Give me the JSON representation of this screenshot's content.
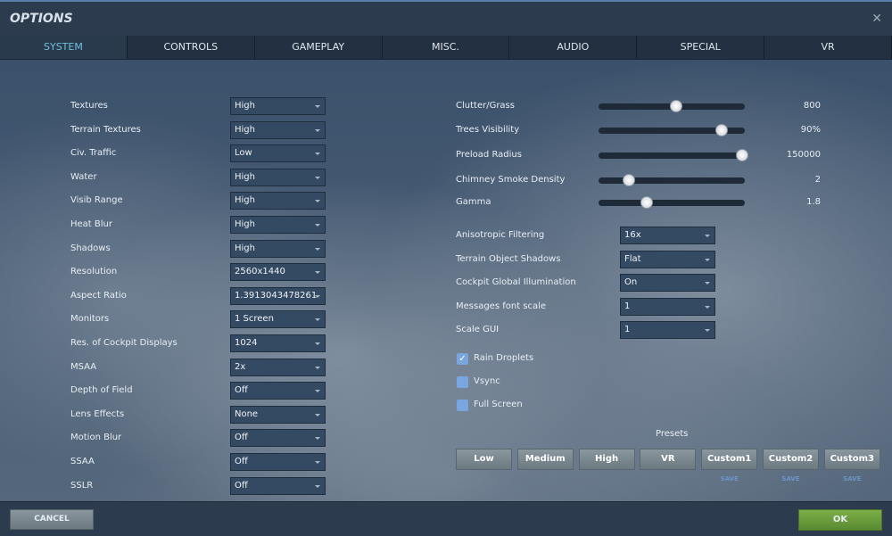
{
  "window": {
    "title": "OPTIONS",
    "close_icon": "close-icon"
  },
  "tabs": [
    {
      "label": "SYSTEM",
      "active": true
    },
    {
      "label": "CONTROLS"
    },
    {
      "label": "GAMEPLAY"
    },
    {
      "label": "MISC."
    },
    {
      "label": "AUDIO"
    },
    {
      "label": "SPECIAL"
    },
    {
      "label": "VR"
    }
  ],
  "left_settings": [
    {
      "label": "Textures",
      "value": "High"
    },
    {
      "label": "Terrain Textures",
      "value": "High"
    },
    {
      "label": "Civ. Traffic",
      "value": "Low"
    },
    {
      "label": "Water",
      "value": "High"
    },
    {
      "label": "Visib Range",
      "value": "High"
    },
    {
      "label": "Heat Blur",
      "value": "High"
    },
    {
      "label": "Shadows",
      "value": "High"
    },
    {
      "label": "Resolution",
      "value": "2560x1440"
    },
    {
      "label": "Aspect Ratio",
      "value": "1.3913043478261"
    },
    {
      "label": "Monitors",
      "value": "1 Screen"
    },
    {
      "label": "Res. of Cockpit Displays",
      "value": "1024"
    },
    {
      "label": "MSAA",
      "value": "2x"
    },
    {
      "label": "Depth of Field",
      "value": "Off"
    },
    {
      "label": "Lens Effects",
      "value": "None"
    },
    {
      "label": "Motion Blur",
      "value": "Off"
    },
    {
      "label": "SSAA",
      "value": "Off"
    },
    {
      "label": "SSLR",
      "value": "Off"
    }
  ],
  "sliders": [
    {
      "label": "Clutter/Grass",
      "value": "800",
      "fraction": 0.53
    },
    {
      "label": "Trees Visibility",
      "value": "90%",
      "fraction": 0.84
    },
    {
      "label": "Preload Radius",
      "value": "150000",
      "fraction": 0.98
    },
    {
      "label": "Chimney Smoke Density",
      "value": "2",
      "fraction": 0.21
    },
    {
      "label": "Gamma",
      "value": "1.8",
      "fraction": 0.33
    }
  ],
  "right_settings": [
    {
      "label": "Anisotropic Filtering",
      "value": "16x"
    },
    {
      "label": "Terrain Object Shadows",
      "value": "Flat"
    },
    {
      "label": "Cockpit Global Illumination",
      "value": "On"
    },
    {
      "label": "Messages font scale",
      "value": "1"
    },
    {
      "label": "Scale GUI",
      "value": "1"
    }
  ],
  "checkboxes": [
    {
      "label": "Rain Droplets",
      "checked": true
    },
    {
      "label": "Vsync",
      "checked": false
    },
    {
      "label": "Full Screen",
      "checked": false
    }
  ],
  "presets": {
    "title": "Presets",
    "buttons": [
      "Low",
      "Medium",
      "High",
      "VR",
      "Custom1",
      "Custom2",
      "Custom3"
    ],
    "save_label": "SAVE"
  },
  "footer": {
    "cancel": "CANCEL",
    "ok": "OK"
  },
  "colors": {
    "accent_tab": "#6fc0dc",
    "ok_green": "#6a9c3c",
    "checkbox": "#7aa6e0"
  }
}
